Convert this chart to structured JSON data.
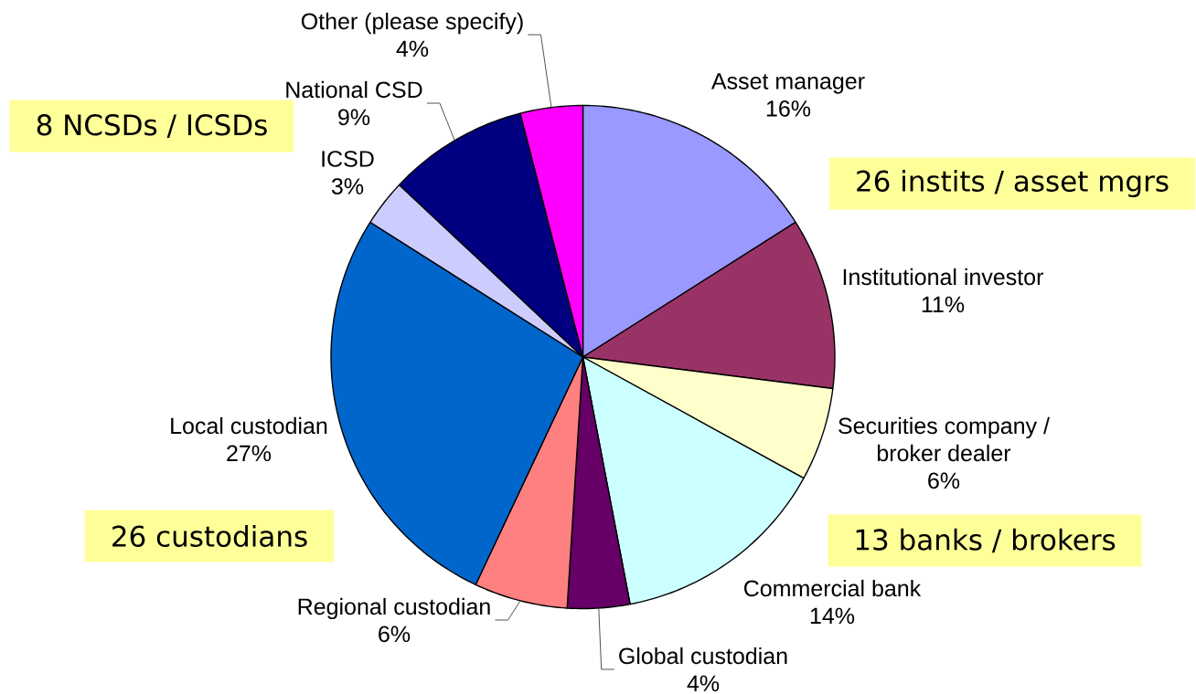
{
  "chart_data": {
    "type": "pie",
    "categories": [
      "Asset manager",
      "Institutional investor",
      "Securities company / broker dealer",
      "Commercial bank",
      "Global custodian",
      "Regional custodian",
      "Local custodian",
      "ICSD",
      "National CSD",
      "Other (please specify)"
    ],
    "values": [
      16,
      11,
      6,
      14,
      4,
      6,
      27,
      3,
      9,
      4
    ],
    "colors": [
      "#9999ff",
      "#993366",
      "#ffffcc",
      "#ccffff",
      "#660066",
      "#ff8080",
      "#0066cc",
      "#ccccff",
      "#000080",
      "#ff00ff"
    ],
    "value_labels": [
      "16%",
      "11%",
      "6%",
      "14%",
      "4%",
      "6%",
      "27%",
      "3%",
      "9%",
      "4%"
    ],
    "annotations": [
      "8 NCSDs / ICSDs",
      "26 instits / asset mgrs",
      "26 custodians",
      "13 banks / brokers"
    ]
  }
}
